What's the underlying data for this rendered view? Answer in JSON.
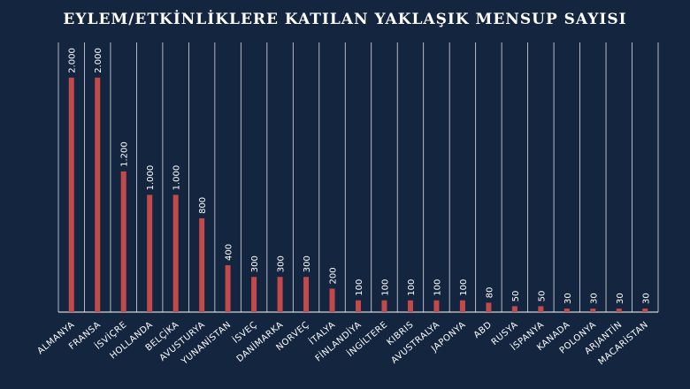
{
  "chart_data": {
    "type": "bar",
    "title": "EYLEM/ETKİNLİKLERE KATILAN YAKLAŞIK MENSUP SAYISI",
    "xlabel": "",
    "ylabel": "",
    "ylim": [
      0,
      2300
    ],
    "grid": true,
    "legend": "none",
    "colors": {
      "background": "#14253f",
      "bar": "#c24a4a",
      "grid": "#ffffff",
      "text": "#ffffff"
    },
    "categories": [
      "ALMANYA",
      "FRANSA",
      "İSVİÇRE",
      "HOLLANDA",
      "BELÇİKA",
      "AVUSTURYA",
      "YUNANİSTAN",
      "İSVEÇ",
      "DANİMARKA",
      "NORVEÇ",
      "İTALYA",
      "FİNLANDİYA",
      "İNGİLTERE",
      "KIBRIS",
      "AVUSTRALYA",
      "JAPONYA",
      "ABD",
      "RUSYA",
      "İSPANYA",
      "KANADA",
      "POLONYA",
      "ARJANTİN",
      "MACARİSTAN"
    ],
    "values": [
      2000,
      2000,
      1200,
      1000,
      1000,
      800,
      400,
      300,
      300,
      300,
      200,
      100,
      100,
      100,
      100,
      100,
      80,
      50,
      50,
      30,
      30,
      30,
      30
    ],
    "value_labels": [
      "2.000",
      "2.000",
      "1.200",
      "1.000",
      "1.000",
      "800",
      "400",
      "300",
      "300",
      "300",
      "200",
      "100",
      "100",
      "100",
      "100",
      "100",
      "80",
      "50",
      "50",
      "30",
      "30",
      "30",
      "30"
    ]
  }
}
